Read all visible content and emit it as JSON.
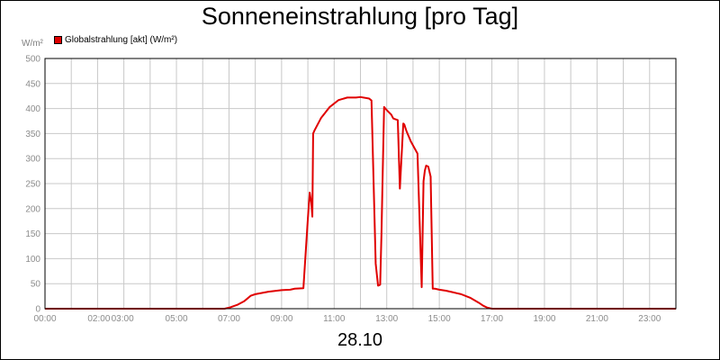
{
  "chart_data": {
    "type": "line",
    "title": "Sonneneinstrahlung [pro Tag]",
    "ylabel": "W/m²",
    "xlabel": "28.10",
    "ylim": [
      0,
      500
    ],
    "xlim": [
      0,
      24
    ],
    "y_ticks": [
      "0",
      "50",
      "100",
      "150",
      "200",
      "250",
      "300",
      "350",
      "400",
      "450",
      "500"
    ],
    "x_ticks": [
      {
        "h": 0,
        "label": "00:00"
      },
      {
        "h": 2,
        "label": "02:00"
      },
      {
        "h": 3,
        "label": "03:00"
      },
      {
        "h": 5,
        "label": "05:00"
      },
      {
        "h": 7,
        "label": "07:00"
      },
      {
        "h": 9,
        "label": "09:00"
      },
      {
        "h": 11,
        "label": "11:00"
      },
      {
        "h": 13,
        "label": "13:00"
      },
      {
        "h": 15,
        "label": "15:00"
      },
      {
        "h": 17,
        "label": "17:00"
      },
      {
        "h": 19,
        "label": "19:00"
      },
      {
        "h": 21,
        "label": "21:00"
      },
      {
        "h": 23,
        "label": "23:00"
      }
    ],
    "grid": true,
    "legend": "top-left",
    "series": [
      {
        "name": "Globalstrahlung [akt] (W/m²)",
        "color": "#e00000",
        "x": [
          0.0,
          6.83,
          7.0,
          7.33,
          7.58,
          7.67,
          7.83,
          8.0,
          8.5,
          9.0,
          9.33,
          9.5,
          9.83,
          10.0,
          10.07,
          10.13,
          10.17,
          10.2,
          10.25,
          10.5,
          10.83,
          11.17,
          11.5,
          11.83,
          12.0,
          12.33,
          12.42,
          12.58,
          12.67,
          12.75,
          12.8,
          12.85,
          12.9,
          12.95,
          13.0,
          13.17,
          13.25,
          13.42,
          13.5,
          13.63,
          13.67,
          13.75,
          13.92,
          14.17,
          14.33,
          14.4,
          14.45,
          14.5,
          14.58,
          14.67,
          14.75,
          14.83,
          15.0,
          15.25,
          15.5,
          15.83,
          16.17,
          16.5,
          16.67,
          16.83,
          17.0,
          17.17,
          17.33,
          17.5,
          24.0
        ],
        "y": [
          0,
          0,
          2,
          8,
          15,
          19,
          26,
          29,
          34,
          37,
          38,
          40,
          41,
          180,
          232,
          212,
          184,
          350,
          356,
          381,
          403,
          417,
          422,
          422,
          423,
          420,
          416,
          90,
          46,
          48,
          150,
          280,
          403,
          400,
          397,
          388,
          380,
          377,
          240,
          370,
          368,
          355,
          334,
          310,
          43,
          255,
          276,
          286,
          284,
          264,
          40,
          40,
          38,
          36,
          33,
          29,
          22,
          12,
          6,
          2,
          0,
          0,
          0,
          0,
          0
        ]
      }
    ]
  }
}
